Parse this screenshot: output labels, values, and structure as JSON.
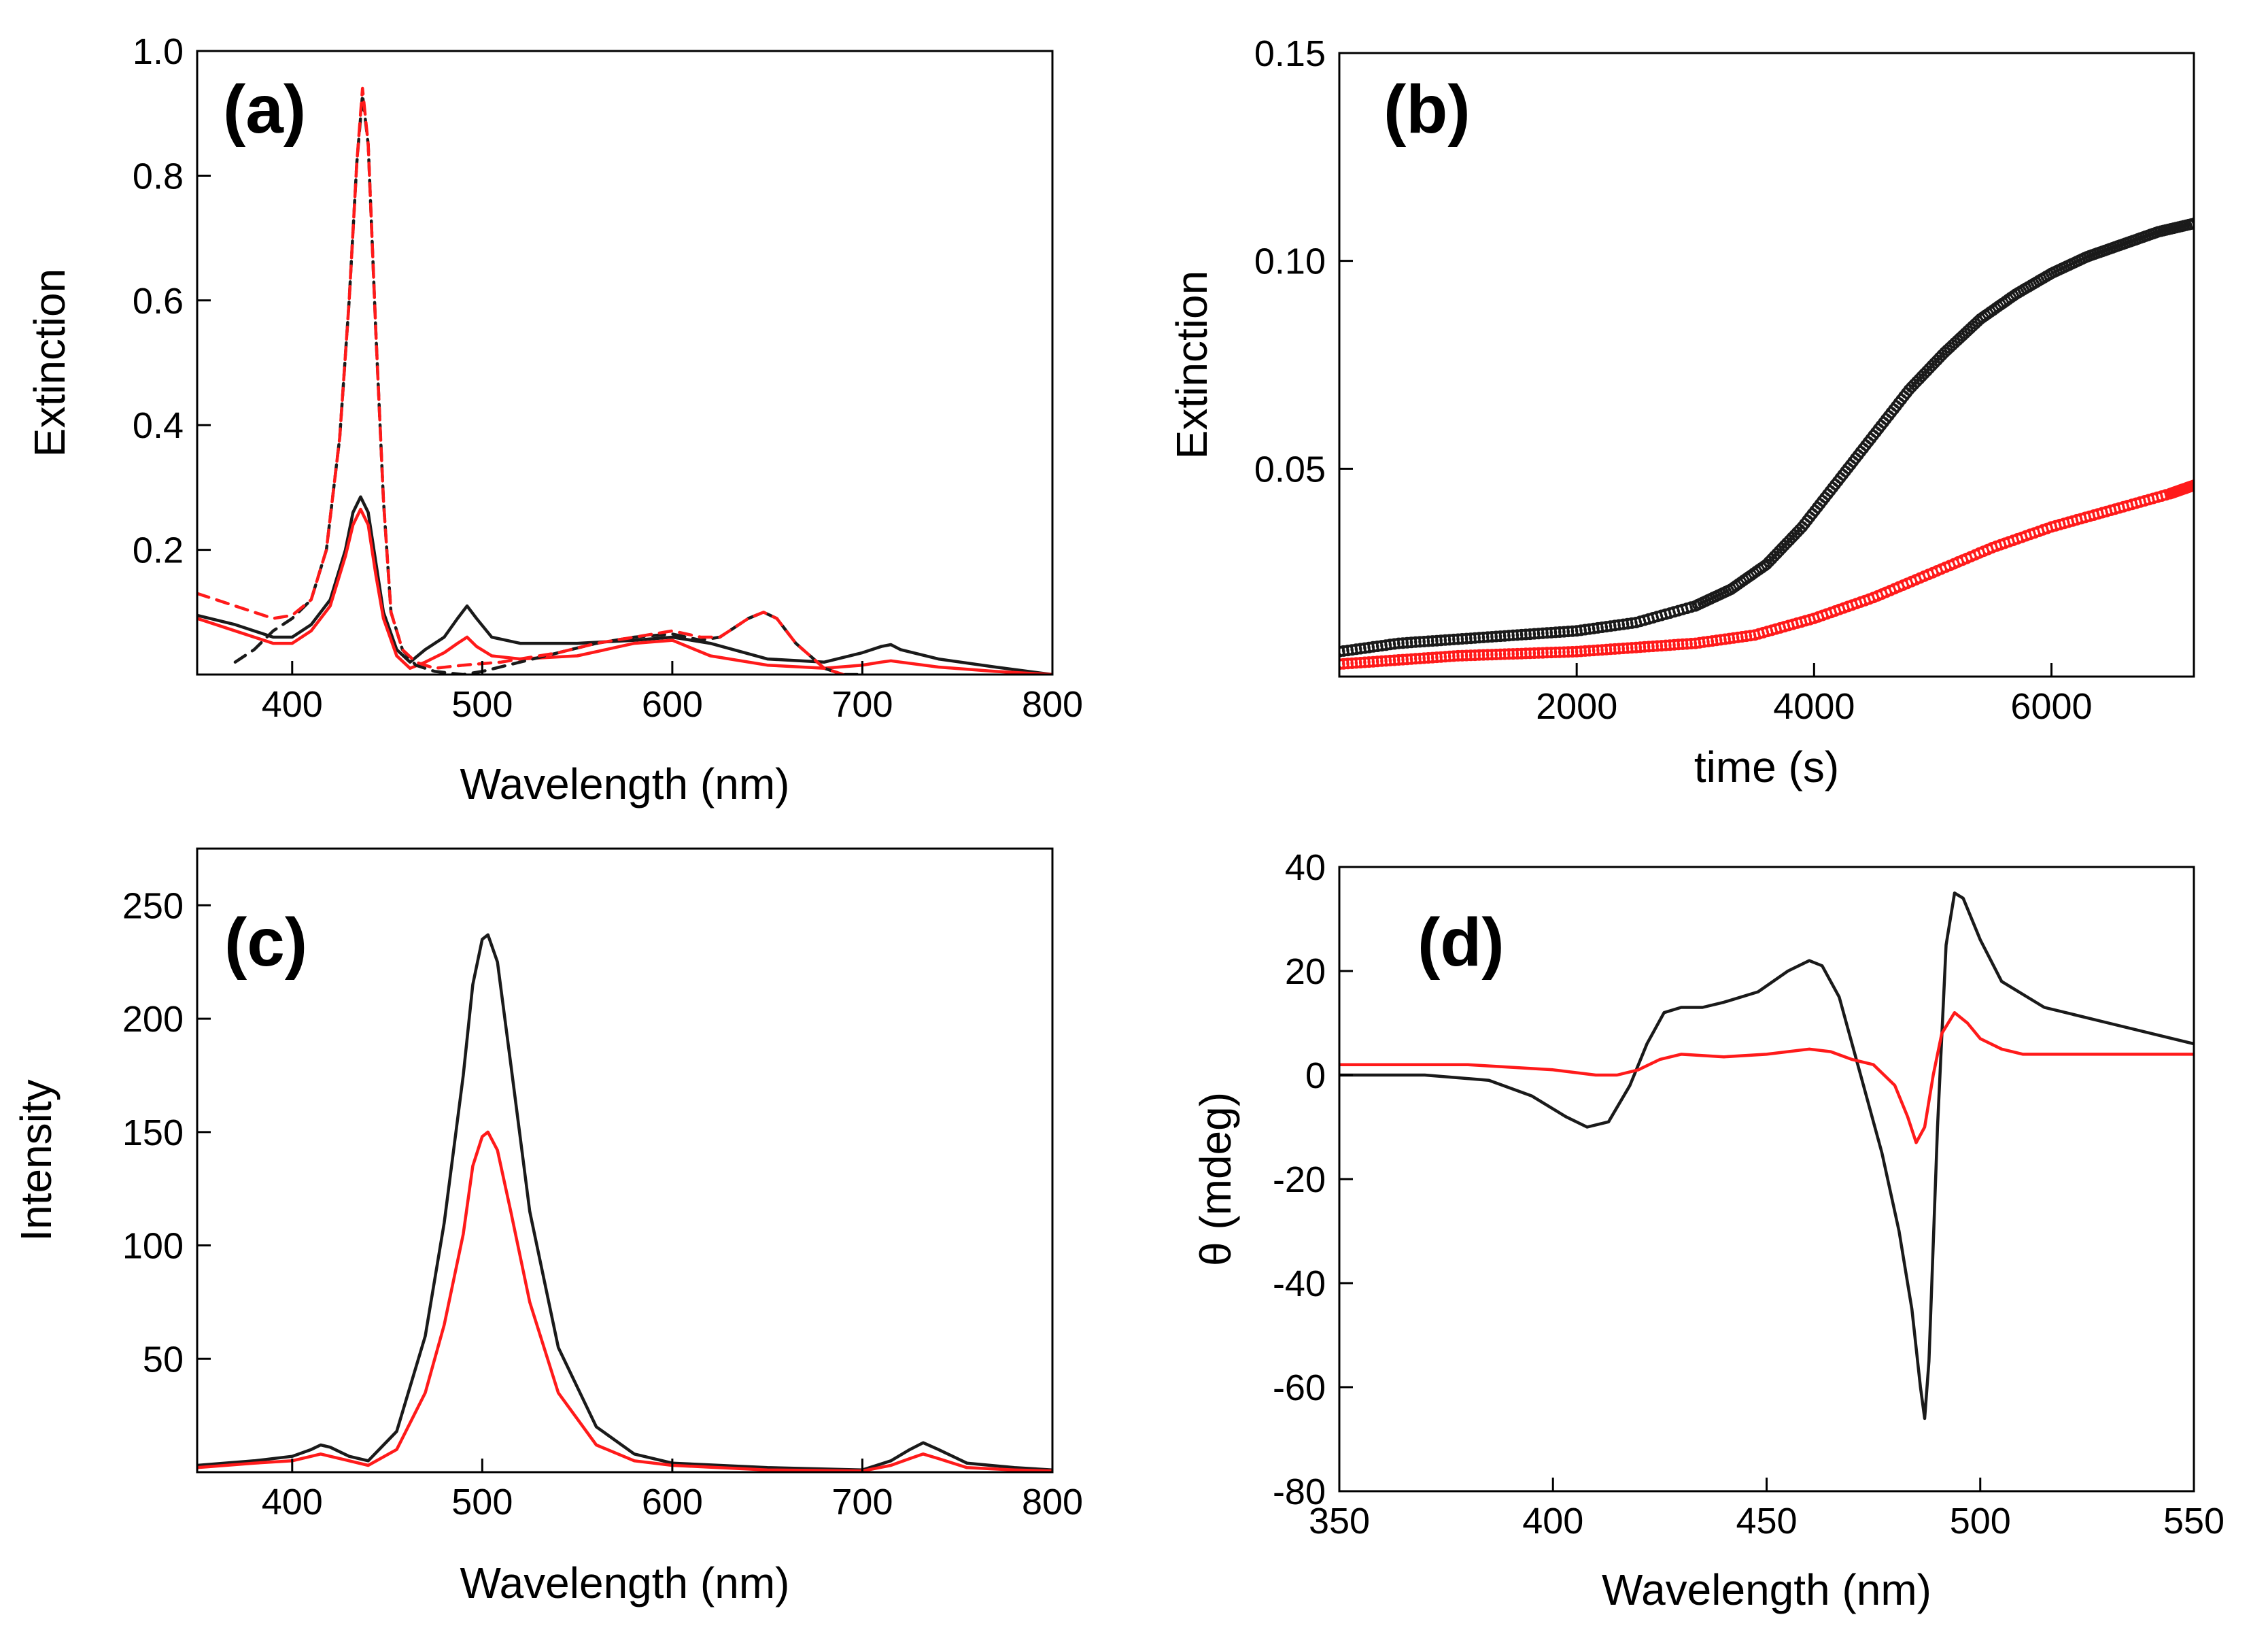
{
  "colors": {
    "black": "#1a1a1a",
    "red": "#ff1a1a"
  },
  "chart_data": [
    {
      "panel_label": "(a)",
      "type": "line",
      "xlabel": "Wavelength (nm)",
      "ylabel": "Extinction",
      "xlim": [
        350,
        800
      ],
      "ylim": [
        0,
        1.0
      ],
      "xticks": [
        400,
        500,
        600,
        700,
        800
      ],
      "yticks": [
        0.2,
        0.4,
        0.6,
        0.8,
        1.0
      ],
      "xtick_labels": [
        "400",
        "500",
        "600",
        "700",
        "800"
      ],
      "ytick_labels": [
        "0.2",
        "0.4",
        "0.6",
        "0.8",
        "1.0"
      ],
      "series": [
        {
          "name": "black solid",
          "color": "black",
          "dashed": false,
          "x": [
            350,
            370,
            390,
            400,
            410,
            420,
            428,
            432,
            436,
            440,
            444,
            448,
            455,
            462,
            470,
            480,
            487,
            492,
            497,
            505,
            520,
            550,
            580,
            600,
            620,
            650,
            680,
            700,
            710,
            715,
            720,
            740,
            770,
            800
          ],
          "y": [
            0.095,
            0.08,
            0.06,
            0.06,
            0.08,
            0.12,
            0.2,
            0.26,
            0.285,
            0.26,
            0.18,
            0.1,
            0.04,
            0.02,
            0.04,
            0.06,
            0.09,
            0.11,
            0.09,
            0.06,
            0.05,
            0.05,
            0.055,
            0.06,
            0.05,
            0.025,
            0.02,
            0.035,
            0.045,
            0.048,
            0.04,
            0.025,
            0.012,
            0.0
          ]
        },
        {
          "name": "red solid",
          "color": "red",
          "dashed": false,
          "x": [
            350,
            370,
            390,
            400,
            410,
            420,
            428,
            432,
            436,
            440,
            444,
            448,
            455,
            462,
            470,
            480,
            487,
            492,
            497,
            505,
            520,
            550,
            580,
            600,
            620,
            650,
            680,
            700,
            710,
            715,
            720,
            740,
            770,
            800
          ],
          "y": [
            0.09,
            0.07,
            0.05,
            0.05,
            0.07,
            0.11,
            0.19,
            0.24,
            0.265,
            0.24,
            0.16,
            0.09,
            0.03,
            0.01,
            0.02,
            0.035,
            0.05,
            0.06,
            0.045,
            0.03,
            0.025,
            0.03,
            0.05,
            0.055,
            0.03,
            0.015,
            0.01,
            0.015,
            0.02,
            0.022,
            0.02,
            0.012,
            0.005,
            0.0
          ]
        },
        {
          "name": "black dashed",
          "color": "black",
          "dashed": true,
          "x": [
            370,
            380,
            390,
            400,
            410,
            418,
            425,
            430,
            434,
            437,
            440,
            444,
            448,
            452,
            458,
            465,
            475,
            490,
            500,
            520,
            540,
            560,
            580,
            600,
            615,
            625,
            640,
            648,
            655,
            665,
            680,
            690,
            700
          ],
          "y": [
            0.02,
            0.04,
            0.07,
            0.09,
            0.12,
            0.2,
            0.38,
            0.6,
            0.82,
            0.93,
            0.85,
            0.55,
            0.28,
            0.1,
            0.04,
            0.015,
            0.005,
            0.0,
            0.005,
            0.02,
            0.035,
            0.05,
            0.06,
            0.065,
            0.055,
            0.06,
            0.09,
            0.1,
            0.09,
            0.05,
            0.01,
            0.0,
            0.0
          ]
        },
        {
          "name": "red dashed",
          "color": "red",
          "dashed": true,
          "x": [
            350,
            370,
            390,
            400,
            410,
            418,
            425,
            430,
            434,
            437,
            440,
            444,
            448,
            452,
            458,
            465,
            475,
            490,
            510,
            540,
            560,
            580,
            600,
            615,
            625,
            640,
            648,
            655,
            665,
            680,
            690
          ],
          "y": [
            0.13,
            0.11,
            0.09,
            0.095,
            0.12,
            0.2,
            0.38,
            0.6,
            0.82,
            0.94,
            0.85,
            0.55,
            0.28,
            0.1,
            0.04,
            0.02,
            0.01,
            0.015,
            0.02,
            0.035,
            0.05,
            0.06,
            0.07,
            0.06,
            0.06,
            0.09,
            0.1,
            0.09,
            0.05,
            0.01,
            0.0
          ]
        }
      ]
    },
    {
      "panel_label": "(b)",
      "type": "scatter",
      "xlabel": "time (s)",
      "ylabel": "Extinction",
      "xlim": [
        0,
        7200
      ],
      "ylim": [
        0,
        0.15
      ],
      "xticks": [
        2000,
        4000,
        6000
      ],
      "yticks": [
        0.05,
        0.1,
        0.15
      ],
      "xtick_labels": [
        "2000",
        "4000",
        "6000"
      ],
      "ytick_labels": [
        "0.05",
        "0.10",
        "0.15"
      ],
      "series": [
        {
          "name": "black",
          "color": "black",
          "x": [
            0,
            500,
            1000,
            1500,
            2000,
            2500,
            3000,
            3300,
            3600,
            3900,
            4200,
            4500,
            4800,
            5100,
            5400,
            5700,
            6000,
            6300,
            6600,
            6900,
            7200
          ],
          "y": [
            0.006,
            0.008,
            0.009,
            0.01,
            0.011,
            0.013,
            0.017,
            0.021,
            0.027,
            0.036,
            0.047,
            0.058,
            0.069,
            0.078,
            0.086,
            0.092,
            0.097,
            0.101,
            0.104,
            0.107,
            0.109
          ]
        },
        {
          "name": "red",
          "color": "red",
          "x": [
            0,
            500,
            1000,
            1500,
            2000,
            2500,
            3000,
            3500,
            4000,
            4500,
            5000,
            5500,
            6000,
            6500,
            7000,
            7200
          ],
          "y": [
            0.003,
            0.004,
            0.005,
            0.0055,
            0.006,
            0.007,
            0.008,
            0.01,
            0.014,
            0.019,
            0.025,
            0.031,
            0.036,
            0.04,
            0.044,
            0.046
          ]
        }
      ]
    },
    {
      "panel_label": "(c)",
      "type": "line",
      "xlabel": "Wavelength (nm)",
      "ylabel": "Intensity",
      "xlim": [
        350,
        800
      ],
      "ylim": [
        0,
        275
      ],
      "xticks": [
        400,
        500,
        600,
        700,
        800
      ],
      "yticks": [
        50,
        100,
        150,
        200,
        250
      ],
      "xtick_labels": [
        "400",
        "500",
        "600",
        "700",
        "800"
      ],
      "ytick_labels": [
        "50",
        "100",
        "150",
        "200",
        "250"
      ],
      "series": [
        {
          "name": "black",
          "color": "black",
          "x": [
            350,
            380,
            400,
            410,
            415,
            420,
            430,
            440,
            455,
            470,
            480,
            490,
            495,
            500,
            503,
            508,
            515,
            525,
            540,
            560,
            580,
            600,
            650,
            700,
            715,
            725,
            732,
            740,
            755,
            780,
            800
          ],
          "y": [
            3,
            5,
            7,
            10,
            12,
            11,
            7,
            5,
            18,
            60,
            110,
            175,
            215,
            235,
            237,
            225,
            180,
            115,
            55,
            20,
            8,
            4,
            2,
            1,
            5,
            10,
            13,
            10,
            4,
            2,
            1
          ]
        },
        {
          "name": "red",
          "color": "red",
          "x": [
            350,
            380,
            400,
            410,
            415,
            420,
            430,
            440,
            455,
            470,
            480,
            490,
            495,
            500,
            503,
            508,
            515,
            525,
            540,
            560,
            580,
            600,
            650,
            700,
            715,
            725,
            732,
            740,
            755,
            780,
            800
          ],
          "y": [
            2,
            4,
            5,
            7,
            8,
            7,
            5,
            3,
            10,
            35,
            65,
            105,
            135,
            148,
            150,
            142,
            115,
            75,
            35,
            12,
            5,
            3,
            1,
            0.5,
            3,
            6,
            8,
            6,
            2,
            1,
            0.5
          ]
        }
      ]
    },
    {
      "panel_label": "(d)",
      "type": "line",
      "xlabel": "Wavelength (nm)",
      "ylabel": "θ (mdeg)",
      "xlim": [
        350,
        550
      ],
      "ylim": [
        -80,
        40
      ],
      "xticks": [
        350,
        400,
        450,
        500,
        550
      ],
      "yticks": [
        -80,
        -60,
        -40,
        -20,
        0,
        20,
        40
      ],
      "xtick_labels": [
        "350",
        "400",
        "450",
        "500",
        "550"
      ],
      "ytick_labels": [
        "-80",
        "-60",
        "-40",
        "-20",
        "0",
        "20",
        "40"
      ],
      "series": [
        {
          "name": "black",
          "color": "black",
          "x": [
            350,
            370,
            385,
            395,
            403,
            408,
            413,
            418,
            422,
            426,
            430,
            435,
            440,
            448,
            455,
            460,
            463,
            467,
            472,
            477,
            481,
            484,
            486,
            487,
            488,
            490,
            492,
            494,
            496,
            500,
            505,
            515,
            530,
            550
          ],
          "y": [
            0,
            0,
            -1,
            -4,
            -8,
            -10,
            -9,
            -2,
            6,
            12,
            13,
            13,
            14,
            16,
            20,
            22,
            21,
            15,
            0,
            -15,
            -30,
            -45,
            -60,
            -66,
            -55,
            -10,
            25,
            35,
            34,
            26,
            18,
            13,
            10,
            6
          ]
        },
        {
          "name": "red",
          "color": "red",
          "x": [
            350,
            380,
            400,
            410,
            415,
            420,
            425,
            430,
            440,
            450,
            460,
            465,
            470,
            475,
            480,
            483,
            485,
            487,
            489,
            491,
            494,
            497,
            500,
            505,
            510,
            520,
            550
          ],
          "y": [
            2,
            2,
            1,
            0,
            0,
            1,
            3,
            4,
            3.5,
            4,
            5,
            4.5,
            3,
            2,
            -2,
            -8,
            -13,
            -10,
            0,
            8,
            12,
            10,
            7,
            5,
            4,
            4,
            4
          ]
        }
      ]
    }
  ]
}
